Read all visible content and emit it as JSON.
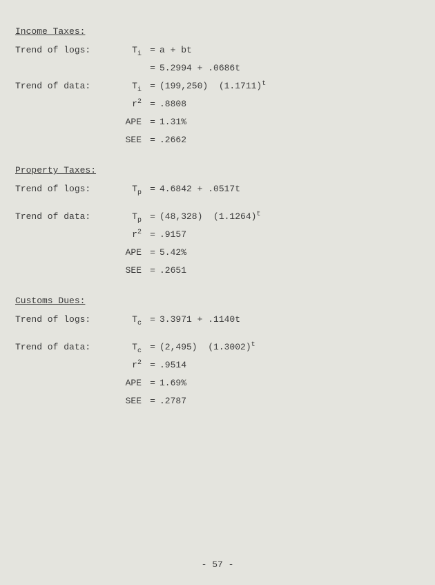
{
  "sections": [
    {
      "title": "Income Taxes:",
      "rows": [
        {
          "label": "Trend of logs:",
          "var_base": "T",
          "var_sub": "i",
          "val": "a + bt"
        },
        {
          "label": "",
          "var_base": "",
          "var_sub": "",
          "val": "5.2994 + .0686t"
        },
        {
          "label": "Trend of data:",
          "var_base": "T",
          "var_sub": "i",
          "val_html": "(199,250)&nbsp;&nbsp;(1.1711)<span class=\"sup\">t</span>"
        },
        {
          "label": "",
          "var_base": "r",
          "var_sup": "2",
          "val": ".8808"
        },
        {
          "label": "",
          "var_plain": "APE",
          "val": "1.31%"
        },
        {
          "label": "",
          "var_plain": "SEE",
          "val": ".2662"
        }
      ]
    },
    {
      "title": "Property Taxes:",
      "rows": [
        {
          "label": "Trend of logs:",
          "var_base": "T",
          "var_sub": "p",
          "val": "4.6842 + .0517t",
          "gap_after": true
        },
        {
          "label": "Trend of data:",
          "var_base": "T",
          "var_sub": "p",
          "val_html": "(48,328)&nbsp;&nbsp;(1.1264)<span class=\"sup\">t</span>"
        },
        {
          "label": "",
          "var_base": "r",
          "var_sup": "2",
          "val": ".9157"
        },
        {
          "label": "",
          "var_plain": "APE",
          "val": "5.42%"
        },
        {
          "label": "",
          "var_plain": "SEE",
          "val": ".2651"
        }
      ]
    },
    {
      "title": "Customs Dues:",
      "rows": [
        {
          "label": "Trend of logs:",
          "var_base": "T",
          "var_sub": "c",
          "val": "3.3971 + .1140t",
          "gap_after": true
        },
        {
          "label": "Trend of data:",
          "var_base": "T",
          "var_sub": "c",
          "val_html": "(2,495)&nbsp;&nbsp;(1.3002)<span class=\"sup\">t</span>"
        },
        {
          "label": "",
          "var_base": "r",
          "var_sup": "2",
          "val": ".9514"
        },
        {
          "label": "",
          "var_plain": "APE",
          "val": "1.69%"
        },
        {
          "label": "",
          "var_plain": "SEE",
          "val": ".2787"
        }
      ]
    }
  ],
  "page_number": "- 57 -",
  "eq": "="
}
